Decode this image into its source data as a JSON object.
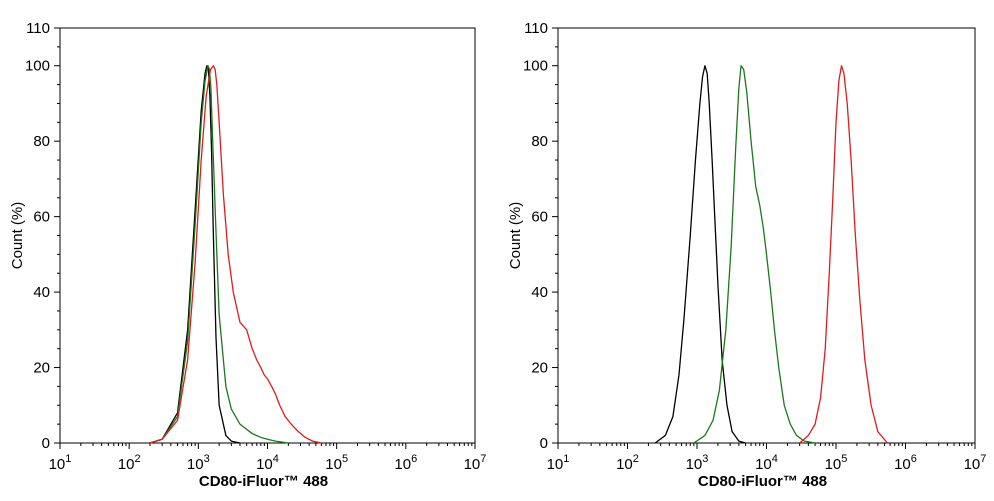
{
  "colors": {
    "black": "#000000",
    "green": "#1a7a1a",
    "red": "#e11b1b"
  },
  "chart_data": [
    {
      "type": "line",
      "title": "",
      "xlabel": "CD80-iFluor™ 488",
      "ylabel": "Count  (%)",
      "xscale": "log",
      "xlim": [
        10,
        10000000
      ],
      "ylim": [
        0,
        110
      ],
      "xticks": [
        {
          "b": "10",
          "e": "1"
        },
        {
          "b": "10",
          "e": "2"
        },
        {
          "b": "10",
          "e": "3"
        },
        {
          "b": "10",
          "e": "4"
        },
        {
          "b": "10",
          "e": "5"
        },
        {
          "b": "10",
          "e": "6"
        },
        {
          "b": "10",
          "e": "7"
        }
      ],
      "yticks": [
        "0",
        "20",
        "40",
        "60",
        "80",
        "100",
        "110"
      ],
      "grid": false,
      "series": [
        {
          "color": "#000000",
          "x": [
            200,
            300,
            500,
            700,
            900,
            1100,
            1250,
            1330,
            1400,
            1470,
            1550,
            1650,
            1800,
            2000,
            2500,
            3000,
            4000
          ],
          "y": [
            0,
            1,
            8,
            30,
            62,
            88,
            98,
            100,
            99,
            92,
            78,
            55,
            28,
            10,
            2,
            0.5,
            0
          ]
        },
        {
          "color": "#1a7a1a",
          "x": [
            200,
            300,
            500,
            700,
            900,
            1100,
            1250,
            1380,
            1450,
            1520,
            1600,
            1800,
            2000,
            2500,
            3000,
            4000,
            6000,
            8000,
            10000,
            13000,
            20000
          ],
          "y": [
            0,
            1,
            7,
            27,
            58,
            85,
            96,
            100,
            99,
            94,
            82,
            56,
            34,
            15,
            9,
            5,
            2.5,
            1.5,
            1,
            0.5,
            0
          ]
        },
        {
          "color": "#e11b1b",
          "x": [
            200,
            300,
            500,
            700,
            900,
            1100,
            1300,
            1500,
            1650,
            1750,
            1850,
            2000,
            2300,
            2700,
            3200,
            4000,
            5000,
            6000,
            7000,
            8000,
            9000,
            10000,
            11500,
            13000,
            15000,
            18000,
            22000,
            28000,
            35000,
            45000,
            60000
          ],
          "y": [
            0,
            1,
            6,
            22,
            48,
            75,
            92,
            99,
            100,
            99,
            95,
            85,
            66,
            50,
            40,
            32,
            30,
            25,
            22,
            20,
            18,
            17,
            15,
            13,
            10,
            7,
            5,
            3,
            1.5,
            0.5,
            0
          ]
        }
      ]
    },
    {
      "type": "line",
      "title": "",
      "xlabel": "CD80-iFluor™ 488",
      "ylabel": "Count  (%)",
      "xscale": "log",
      "xlim": [
        10,
        10000000
      ],
      "ylim": [
        0,
        110
      ],
      "xticks": [
        {
          "b": "10",
          "e": "1"
        },
        {
          "b": "10",
          "e": "2"
        },
        {
          "b": "10",
          "e": "3"
        },
        {
          "b": "10",
          "e": "4"
        },
        {
          "b": "10",
          "e": "5"
        },
        {
          "b": "10",
          "e": "6"
        },
        {
          "b": "10",
          "e": "7"
        }
      ],
      "yticks": [
        "0",
        "20",
        "40",
        "60",
        "80",
        "100",
        "110"
      ],
      "grid": false,
      "series": [
        {
          "color": "#000000",
          "x": [
            250,
            350,
            450,
            550,
            650,
            800,
            950,
            1100,
            1200,
            1300,
            1400,
            1500,
            1650,
            1800,
            2000,
            2300,
            2700,
            3200,
            4000,
            5000
          ],
          "y": [
            0,
            2,
            7,
            18,
            33,
            55,
            75,
            90,
            97,
            100,
            98,
            90,
            75,
            60,
            42,
            22,
            10,
            3,
            0.5,
            0
          ]
        },
        {
          "color": "#1a7a1a",
          "x": [
            900,
            1300,
            1700,
            2100,
            2600,
            3100,
            3600,
            4000,
            4300,
            4700,
            5200,
            6000,
            7000,
            8000,
            9000,
            10000,
            11500,
            13000,
            15000,
            18000,
            22000,
            27000,
            35000,
            50000
          ],
          "y": [
            0,
            2,
            6,
            14,
            30,
            52,
            78,
            94,
            100,
            99,
            93,
            80,
            68,
            63,
            57,
            50,
            40,
            30,
            20,
            10,
            5,
            2,
            0.5,
            0
          ]
        },
        {
          "color": "#e11b1b",
          "x": [
            30000,
            40000,
            50000,
            60000,
            70000,
            80000,
            90000,
            100000,
            110000,
            120000,
            130000,
            145000,
            165000,
            190000,
            220000,
            260000,
            320000,
            400000,
            550000
          ],
          "y": [
            0,
            2,
            5,
            12,
            25,
            45,
            65,
            85,
            96,
            100,
            98,
            90,
            75,
            55,
            38,
            22,
            10,
            3,
            0
          ]
        }
      ]
    }
  ]
}
